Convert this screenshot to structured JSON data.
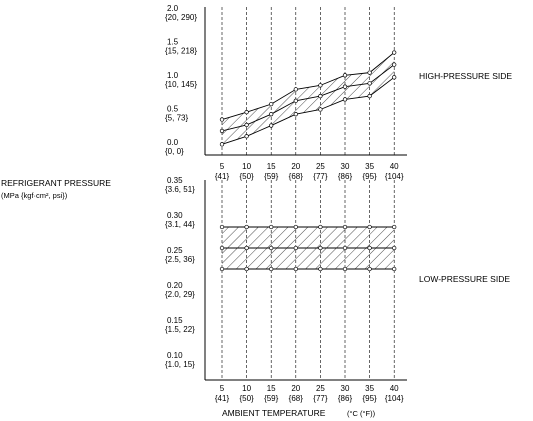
{
  "y_label": "REFRIGERANT PRESSURE",
  "y_unit": "(MPa {kgf·cm², psi})",
  "x_label": "AMBIENT TEMPERATURE",
  "x_unit": "(°C (°F))",
  "chart_data": [
    {
      "type": "area",
      "side_label": "HIGH-PRESSURE SIDE",
      "x": [
        5,
        10,
        15,
        20,
        25,
        30,
        35,
        40
      ],
      "x_tick_labels": [
        {
          "top": "5",
          "bottom": "{41}"
        },
        {
          "top": "10",
          "bottom": "{50}"
        },
        {
          "top": "15",
          "bottom": "{59}"
        },
        {
          "top": "20",
          "bottom": "{68}"
        },
        {
          "top": "25",
          "bottom": "{77}"
        },
        {
          "top": "30",
          "bottom": "{86}"
        },
        {
          "top": "35",
          "bottom": "{95}"
        },
        {
          "top": "40",
          "bottom": "{104}"
        }
      ],
      "ylim": [
        0,
        2.0
      ],
      "y_ticks": [
        {
          "value": 2.0,
          "top": "2.0",
          "bottom": "{20, 290}"
        },
        {
          "value": 1.5,
          "top": "1.5",
          "bottom": "{15, 218}"
        },
        {
          "value": 1.0,
          "top": "1.0",
          "bottom": "{10, 145}"
        },
        {
          "value": 0.5,
          "top": "0.5",
          "bottom": "{5, 73}"
        },
        {
          "value": 0.0,
          "top": "0.0",
          "bottom": "{0, 0}"
        }
      ],
      "upper": [
        0.41,
        0.52,
        0.64,
        0.86,
        0.92,
        1.07,
        1.11,
        1.41
      ],
      "middle": [
        0.24,
        0.33,
        0.49,
        0.69,
        0.76,
        0.9,
        0.95,
        1.23
      ],
      "lower": [
        0.04,
        0.16,
        0.32,
        0.49,
        0.56,
        0.71,
        0.76,
        1.04
      ]
    },
    {
      "type": "area",
      "side_label": "LOW-PRESSURE SIDE",
      "x": [
        5,
        10,
        15,
        20,
        25,
        30,
        35,
        40
      ],
      "x_tick_labels": [
        {
          "top": "5",
          "bottom": "{41}"
        },
        {
          "top": "10",
          "bottom": "{50}"
        },
        {
          "top": "15",
          "bottom": "{59}"
        },
        {
          "top": "20",
          "bottom": "{68}"
        },
        {
          "top": "25",
          "bottom": "{77}"
        },
        {
          "top": "30",
          "bottom": "{86}"
        },
        {
          "top": "35",
          "bottom": "{95}"
        },
        {
          "top": "40",
          "bottom": "{104}"
        }
      ],
      "ylim": [
        0.1,
        0.35
      ],
      "y_ticks": [
        {
          "value": 0.35,
          "top": "0.35",
          "bottom": "{3.6, 51}"
        },
        {
          "value": 0.3,
          "top": "0.30",
          "bottom": "{3.1, 44}"
        },
        {
          "value": 0.25,
          "top": "0.25",
          "bottom": "{2.5, 36}"
        },
        {
          "value": 0.2,
          "top": "0.20",
          "bottom": "{2.0, 29}"
        },
        {
          "value": 0.15,
          "top": "0.15",
          "bottom": "{1.5, 22}"
        },
        {
          "value": 0.1,
          "top": "0.10",
          "bottom": "{1.0, 15}"
        }
      ],
      "upper": [
        0.29,
        0.29,
        0.29,
        0.29,
        0.29,
        0.29,
        0.29,
        0.29
      ],
      "middle": [
        0.26,
        0.26,
        0.26,
        0.26,
        0.26,
        0.26,
        0.26,
        0.26
      ],
      "lower": [
        0.23,
        0.23,
        0.23,
        0.23,
        0.23,
        0.23,
        0.23,
        0.23
      ]
    }
  ]
}
